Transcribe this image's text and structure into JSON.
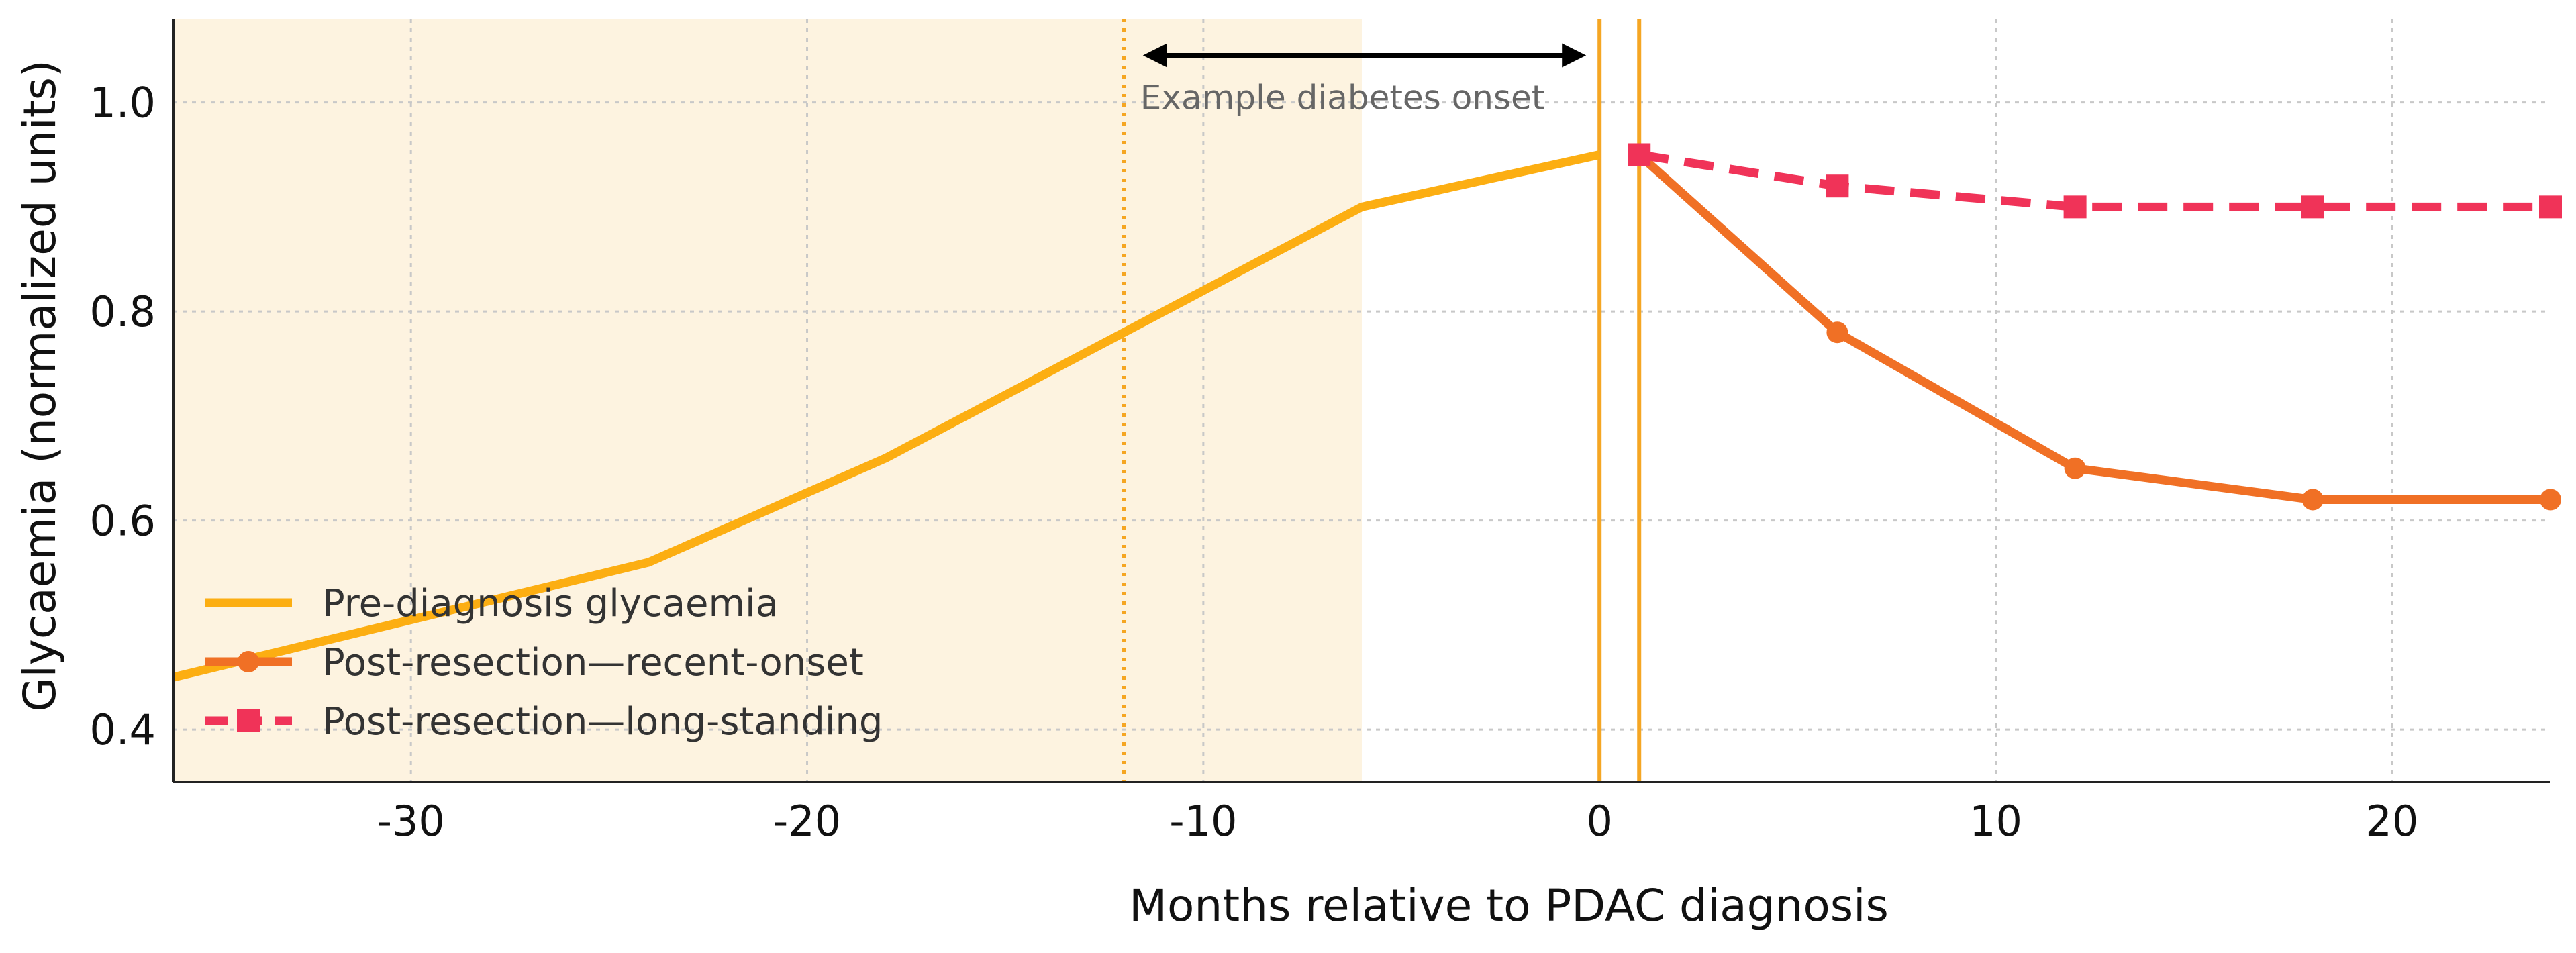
{
  "chart_data": {
    "type": "line",
    "xlabel": "Months relative to PDAC diagnosis",
    "ylabel": "Glycaemia (normalized units)",
    "xlim": [
      -36,
      24
    ],
    "ylim": [
      0.35,
      1.08
    ],
    "x_ticks": [
      -30,
      -20,
      -10,
      0,
      10,
      20
    ],
    "x_tick_labels": [
      "-30",
      "-20",
      "-10",
      "0",
      "10",
      "20"
    ],
    "y_ticks": [
      0.4,
      0.6,
      0.8,
      1.0
    ],
    "y_tick_labels": [
      "0.4",
      "0.6",
      "0.8",
      "1.0"
    ],
    "grid": true,
    "legend_position": "lower-left",
    "shaded_region": {
      "x_start": -36,
      "x_end": -6,
      "color": "#fdf3e0"
    },
    "vertical_lines": [
      {
        "x": -12,
        "style": "dotted",
        "color": "#f5a623"
      },
      {
        "x": 0,
        "style": "solid",
        "color": "#f5a623"
      },
      {
        "x": 1,
        "style": "solid",
        "color": "#f5a623"
      }
    ],
    "annotation": {
      "text": "Example diabetes onset",
      "arrow_from_x": -12,
      "arrow_to_x": 0,
      "arrow_y": 1.045,
      "text_y": 1.0
    },
    "series": [
      {
        "name": "Pre-diagnosis glycaemia",
        "color": "#fcae12",
        "line_style": "solid",
        "marker": "none",
        "x": [
          -36,
          -24,
          -18,
          -12,
          -6,
          0
        ],
        "y": [
          0.45,
          0.56,
          0.66,
          0.78,
          0.9,
          0.95
        ]
      },
      {
        "name": "Post-resection—recent-onset",
        "color": "#f07025",
        "line_style": "solid",
        "marker": "circle",
        "x": [
          1,
          6,
          12,
          18,
          24
        ],
        "y": [
          0.95,
          0.78,
          0.65,
          0.62,
          0.62
        ]
      },
      {
        "name": "Post-resection—long-standing",
        "color": "#f03358",
        "line_style": "dashed",
        "marker": "square",
        "x": [
          1,
          6,
          12,
          18,
          24
        ],
        "y": [
          0.95,
          0.92,
          0.9,
          0.9,
          0.9
        ]
      }
    ]
  }
}
